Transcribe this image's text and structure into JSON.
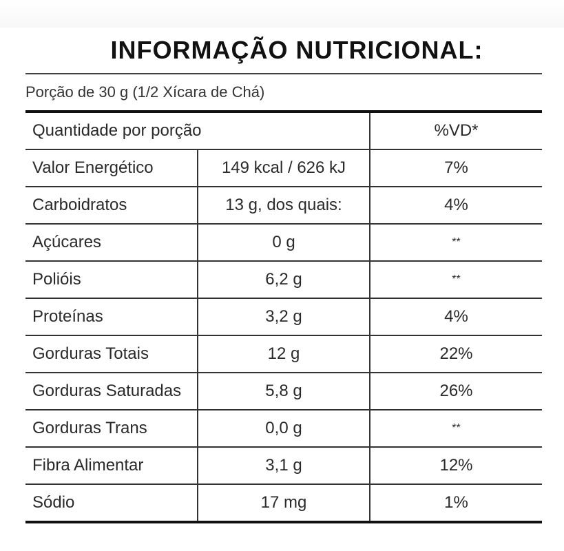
{
  "title": "INFORMAÇÃO NUTRICIONAL:",
  "portion": "Porção de 30 g (1/2 Xícara de Chá)",
  "header": {
    "quantity": "Quantidade por porção",
    "dv": "%VD*"
  },
  "rows": [
    {
      "name": "Valor Energético",
      "amount": "149 kcal / 626 kJ",
      "dv": "7%"
    },
    {
      "name": "Carboidratos",
      "amount": "13 g, dos quais:",
      "dv": "4%"
    },
    {
      "name": "Açúcares",
      "amount": "0 g",
      "dv": "**"
    },
    {
      "name": "Polióis",
      "amount": "6,2 g",
      "dv": "**"
    },
    {
      "name": "Proteínas",
      "amount": "3,2 g",
      "dv": "4%"
    },
    {
      "name": "Gorduras Totais",
      "amount": "12 g",
      "dv": "22%"
    },
    {
      "name": "Gorduras Saturadas",
      "amount": "5,8 g",
      "dv": "26%"
    },
    {
      "name": "Gorduras Trans",
      "amount": "0,0 g",
      "dv": "**"
    },
    {
      "name": "Fibra Alimentar",
      "amount": "3,1 g",
      "dv": "12%"
    },
    {
      "name": "Sódio",
      "amount": "17 mg",
      "dv": "1%"
    }
  ]
}
